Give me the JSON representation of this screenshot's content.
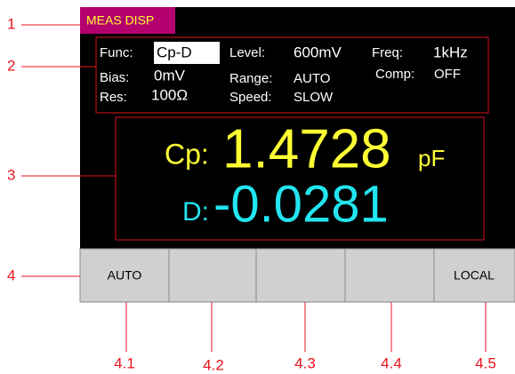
{
  "screen": {
    "tab": "MEAS DISP",
    "params": {
      "func_label": "Func:",
      "func_value": "Cp-D",
      "level_label": "Level:",
      "level_value": "600mV",
      "freq_label": "Freq:",
      "freq_value": "1kHz",
      "bias_label": "Bias:",
      "bias_value": "0mV",
      "range_label": "Range:",
      "range_value": "AUTO",
      "comp_label": "Comp:",
      "comp_value": "OFF",
      "res_label": "Res:",
      "res_value": "100Ω",
      "speed_label": "Speed:",
      "speed_value": "SLOW"
    },
    "primary": {
      "label": "Cp:",
      "value": "1.4728",
      "unit": "pF"
    },
    "secondary": {
      "label": "D:",
      "value": "-0.0281"
    },
    "softkeys": {
      "first": "AUTO",
      "last": "LOCAL"
    }
  },
  "annotations": [
    "1",
    "2",
    "3",
    "4",
    "4.1",
    "4.2",
    "4.3",
    "4.4",
    "4.5"
  ]
}
